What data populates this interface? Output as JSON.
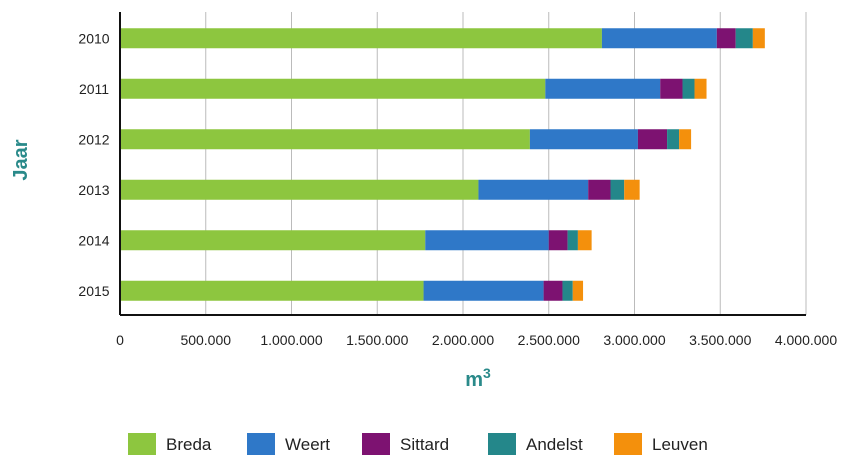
{
  "chart_data": {
    "type": "bar",
    "orientation": "horizontal",
    "stacked": true,
    "categories": [
      "2010",
      "2011",
      "2012",
      "2013",
      "2014",
      "2015"
    ],
    "series": [
      {
        "name": "Breda",
        "color": "#8dc63f",
        "values": [
          2810000,
          2480000,
          2390000,
          2090000,
          1780000,
          1770000
        ]
      },
      {
        "name": "Weert",
        "color": "#2f78c8",
        "values": [
          670000,
          670000,
          630000,
          640000,
          720000,
          700000
        ]
      },
      {
        "name": "Sittard",
        "color": "#7d1271",
        "values": [
          110000,
          130000,
          170000,
          130000,
          110000,
          110000
        ]
      },
      {
        "name": "Andelst",
        "color": "#24878a",
        "values": [
          100000,
          70000,
          70000,
          80000,
          60000,
          60000
        ]
      },
      {
        "name": "Leuven",
        "color": "#f4900c",
        "values": [
          70000,
          70000,
          70000,
          90000,
          80000,
          60000
        ]
      }
    ],
    "xlabel": "m3",
    "ylabel": "Jaar",
    "xlim": [
      0,
      4000000
    ],
    "xticks": [
      0,
      500000,
      1000000,
      1500000,
      2000000,
      2500000,
      3000000,
      3500000,
      4000000
    ],
    "xtick_labels": [
      "0",
      "500.000",
      "1.000.000",
      "1.500.000",
      "2.000.000",
      "2.500.000",
      "3.000.000",
      "3.500.000",
      "4.000.000"
    ],
    "grid": "vertical",
    "legend": "bottom",
    "axis_title_color": "#2a8a8a",
    "grid_color": "#bbbbbb",
    "axis_color": "#111111"
  }
}
